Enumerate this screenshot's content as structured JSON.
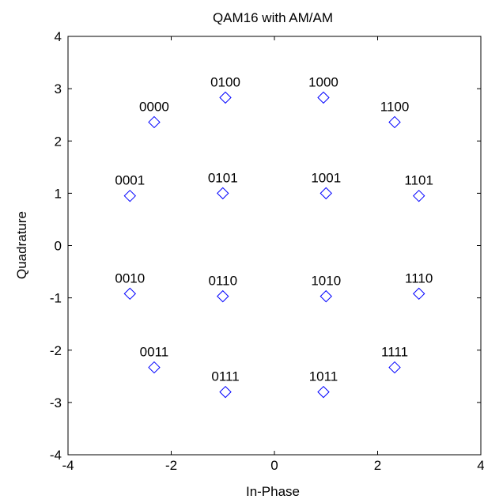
{
  "chart_data": {
    "type": "scatter",
    "title": "QAM16 with AM/AM",
    "xlabel": "In-Phase",
    "ylabel": "Quadrature",
    "xlim": [
      -4,
      4
    ],
    "ylim": [
      -4,
      4
    ],
    "xticks": [
      -4,
      -2,
      0,
      2,
      4
    ],
    "yticks": [
      -4,
      -3,
      -2,
      -1,
      0,
      1,
      2,
      3,
      4
    ],
    "grid": false,
    "legend": "none",
    "marker": "diamond",
    "marker_color": "#0000ff",
    "points": [
      {
        "x": -2.33,
        "y": 2.36,
        "label": "0000"
      },
      {
        "x": -2.8,
        "y": 0.95,
        "label": "0001"
      },
      {
        "x": -2.8,
        "y": -0.92,
        "label": "0010"
      },
      {
        "x": -2.33,
        "y": -2.33,
        "label": "0011"
      },
      {
        "x": -0.95,
        "y": 2.83,
        "label": "0100"
      },
      {
        "x": -1.0,
        "y": 1.0,
        "label": "0101"
      },
      {
        "x": -1.0,
        "y": -0.97,
        "label": "0110"
      },
      {
        "x": -0.95,
        "y": -2.8,
        "label": "0111"
      },
      {
        "x": 0.95,
        "y": 2.83,
        "label": "1000"
      },
      {
        "x": 1.0,
        "y": 1.0,
        "label": "1001"
      },
      {
        "x": 1.0,
        "y": -0.97,
        "label": "1010"
      },
      {
        "x": 0.95,
        "y": -2.8,
        "label": "1011"
      },
      {
        "x": 2.33,
        "y": 2.36,
        "label": "1100"
      },
      {
        "x": 2.8,
        "y": 0.95,
        "label": "1101"
      },
      {
        "x": 2.8,
        "y": -0.92,
        "label": "1110"
      },
      {
        "x": 2.33,
        "y": -2.33,
        "label": "1111"
      }
    ]
  }
}
